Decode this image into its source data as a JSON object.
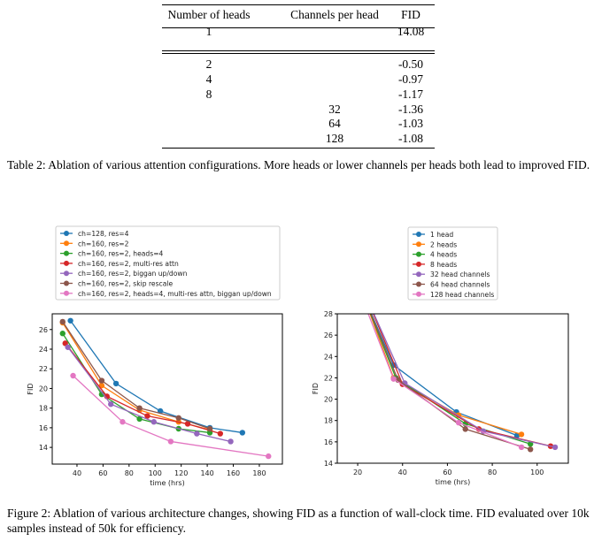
{
  "table": {
    "headers": [
      "Number of heads",
      "Channels per head",
      "FID"
    ],
    "rows": [
      [
        "1",
        "",
        "14.08"
      ],
      [
        "2",
        "",
        "-0.50"
      ],
      [
        "4",
        "",
        "-0.97"
      ],
      [
        "8",
        "",
        "-1.17"
      ],
      [
        "",
        "32",
        "-1.36"
      ],
      [
        "",
        "64",
        "-1.03"
      ],
      [
        "",
        "128",
        "-1.08"
      ]
    ]
  },
  "table_caption": "Table 2: Ablation of various attention configurations. More heads or lower channels per heads both lead to improved FID.",
  "figure_caption": "Figure 2:  Ablation of various architecture changes, showing FID as a function of wall-clock time. FID evaluated over 10k samples instead of 50k for efficiency.",
  "chart_data": [
    {
      "type": "line",
      "xlabel": "time (hrs)",
      "ylabel": "FID",
      "xlim": [
        21,
        197.7
      ],
      "ylim": [
        12.3,
        27.6
      ],
      "xticks": [
        40,
        60,
        80,
        100,
        120,
        140,
        160,
        180
      ],
      "yticks": [
        14,
        16,
        18,
        20,
        22,
        24,
        26
      ],
      "legend": "top (above plot)",
      "series": [
        {
          "name": "ch=128, res=4",
          "color": "#1f77b4",
          "x": [
            35,
            70,
            104,
            142,
            167
          ],
          "y": [
            26.9,
            20.5,
            17.7,
            16.0,
            15.5
          ]
        },
        {
          "name": "ch=160, res=2",
          "color": "#ff7f0e",
          "x": [
            29,
            59,
            88,
            118,
            142
          ],
          "y": [
            26.7,
            20.3,
            17.8,
            16.6,
            15.8
          ]
        },
        {
          "name": "ch=160, res=2, heads=4",
          "color": "#2ca02c",
          "x": [
            29,
            59,
            88,
            118,
            142
          ],
          "y": [
            25.6,
            19.4,
            16.9,
            15.9,
            15.5
          ]
        },
        {
          "name": "ch=160, res=2, multi-res attn",
          "color": "#d62728",
          "x": [
            31,
            63,
            94,
            125,
            150
          ],
          "y": [
            24.6,
            19.2,
            17.2,
            16.4,
            15.4
          ]
        },
        {
          "name": "ch=160, res=2, biggan up/down",
          "color": "#9467bd",
          "x": [
            33,
            66,
            99,
            132,
            158
          ],
          "y": [
            24.2,
            18.4,
            16.6,
            15.4,
            14.6
          ]
        },
        {
          "name": "ch=160, res=2, skip rescale",
          "color": "#8c564b",
          "x": [
            29,
            59,
            88,
            118,
            142
          ],
          "y": [
            26.8,
            20.8,
            18.0,
            17.0,
            15.9
          ]
        },
        {
          "name": "ch=160, res=2, heads=4, multi-res attn, biggan up/down",
          "color": "#e377c2",
          "x": [
            37,
            75,
            112,
            187
          ],
          "y": [
            21.3,
            16.6,
            14.6,
            13.1
          ]
        }
      ]
    },
    {
      "type": "line",
      "xlabel": "time (hrs)",
      "ylabel": "FID",
      "xlim": [
        10.9,
        113.9
      ],
      "ylim": [
        14,
        28
      ],
      "xticks": [
        20,
        40,
        60,
        80,
        100
      ],
      "yticks": [
        14,
        16,
        18,
        20,
        22,
        24,
        26,
        28
      ],
      "legend": "top (above plot)",
      "series": [
        {
          "name": "1 head",
          "color": "#1f77b4",
          "x": [
            22,
            36,
            64,
            91
          ],
          "y": [
            30,
            23.2,
            18.8,
            16.6
          ]
        },
        {
          "name": "2 heads",
          "color": "#ff7f0e",
          "x": [
            22,
            36,
            65,
            93
          ],
          "y": [
            30,
            22.0,
            18.5,
            16.7
          ]
        },
        {
          "name": "4 heads",
          "color": "#2ca02c",
          "x": [
            22,
            37,
            68,
            97
          ],
          "y": [
            30,
            22.0,
            17.7,
            15.8
          ]
        },
        {
          "name": "8 heads",
          "color": "#d62728",
          "x": [
            23,
            40,
            74,
            106
          ],
          "y": [
            30,
            21.4,
            17.2,
            15.6
          ]
        },
        {
          "name": "32 head channels",
          "color": "#9467bd",
          "x": [
            23,
            41,
            76,
            108
          ],
          "y": [
            30,
            21.5,
            17.0,
            15.5
          ]
        },
        {
          "name": "64 head channels",
          "color": "#8c564b",
          "x": [
            22,
            38,
            68,
            97
          ],
          "y": [
            30,
            21.8,
            17.2,
            15.3
          ]
        },
        {
          "name": "128 head channels",
          "color": "#e377c2",
          "x": [
            21,
            36,
            65,
            93
          ],
          "y": [
            30,
            21.9,
            17.8,
            15.5
          ]
        }
      ]
    }
  ]
}
